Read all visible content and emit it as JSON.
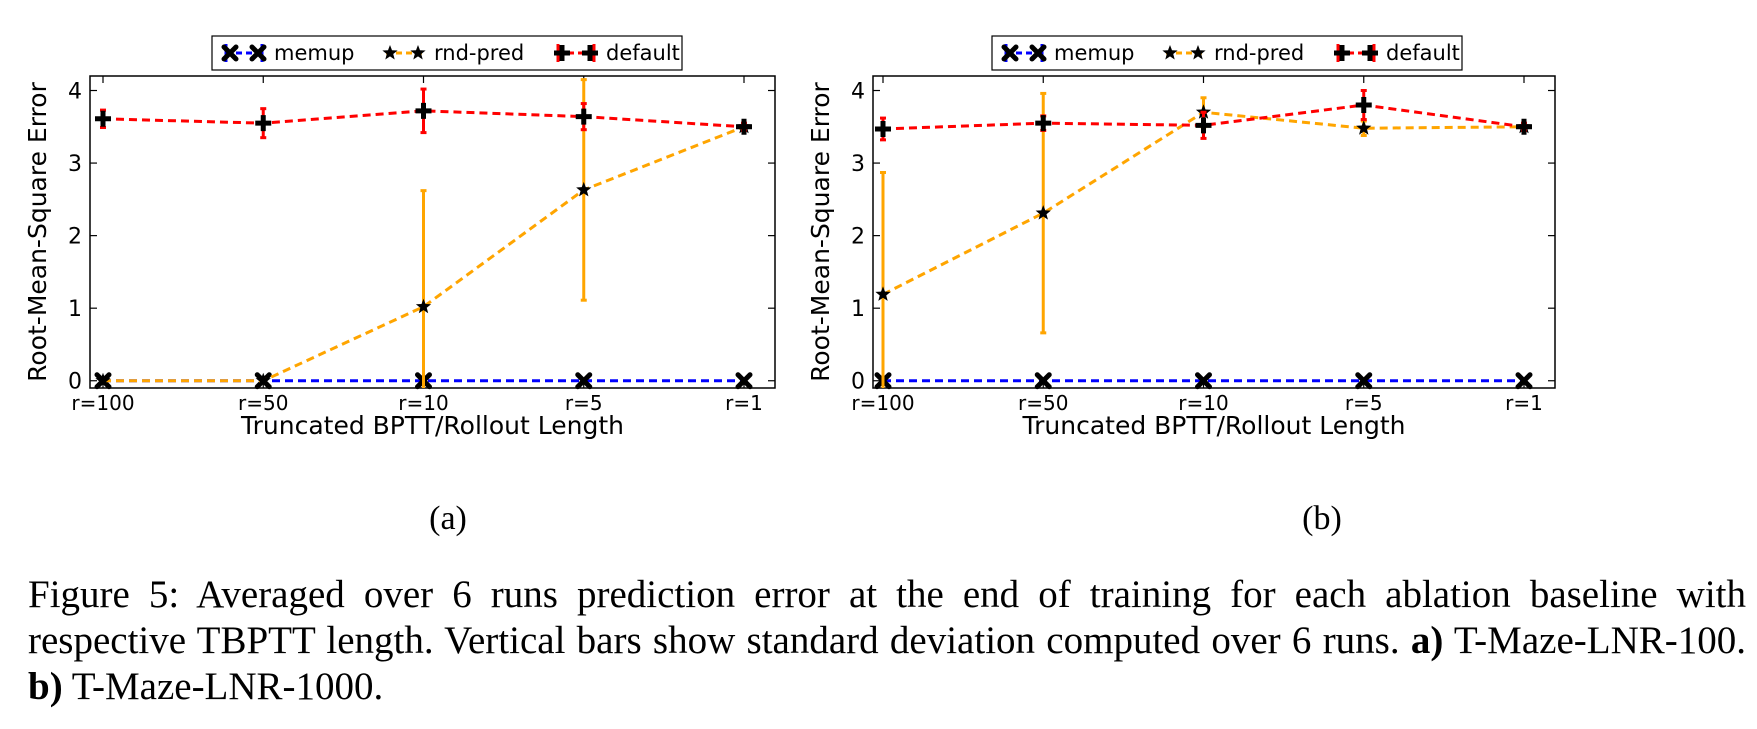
{
  "chart_data": [
    {
      "type": "line",
      "title": "(none,)",
      "xlabel": "Truncated BPTT/Rollout Length",
      "ylabel": "Root-Mean-Square Error",
      "categories": [
        "r=100",
        "r=50",
        "r=10",
        "r=5",
        "r=1"
      ],
      "yticks": [
        "0",
        "1",
        "2",
        "3",
        "4"
      ],
      "ylim": [
        -0.1,
        4.2
      ],
      "legend": "top-center",
      "series": [
        {
          "name": "memup",
          "color": "#0000ff",
          "marker": "x",
          "values": [
            0,
            0,
            0,
            0,
            0
          ],
          "err": [
            0,
            0,
            0,
            0,
            0
          ]
        },
        {
          "name": "rnd-pred",
          "color": "#ffa500",
          "marker": "star",
          "values": [
            0,
            0,
            1.02,
            2.63,
            3.5
          ],
          "err": [
            0,
            0,
            1.6,
            1.52,
            0
          ]
        },
        {
          "name": "default",
          "color": "#ff0000",
          "marker": "plus",
          "values": [
            3.61,
            3.55,
            3.72,
            3.64,
            3.5
          ],
          "err": [
            0.12,
            0.2,
            0.3,
            0.18,
            0.05
          ]
        }
      ],
      "subcaption": "(a)"
    },
    {
      "type": "line",
      "title": "(none,)",
      "xlabel": "Truncated BPTT/Rollout Length",
      "ylabel": "Root-Mean-Square Error",
      "categories": [
        "r=100",
        "r=50",
        "r=10",
        "r=5",
        "r=1"
      ],
      "yticks": [
        "0",
        "1",
        "2",
        "3",
        "4"
      ],
      "ylim": [
        -0.1,
        4.2
      ],
      "legend": "top-center",
      "series": [
        {
          "name": "memup",
          "color": "#0000ff",
          "marker": "x",
          "values": [
            0,
            0,
            0,
            0,
            0
          ],
          "err": [
            0,
            0,
            0,
            0,
            0
          ]
        },
        {
          "name": "rnd-pred",
          "color": "#ffa500",
          "marker": "star",
          "values": [
            1.19,
            2.31,
            3.7,
            3.48,
            3.5
          ],
          "err": [
            1.68,
            1.65,
            0.2,
            0.1,
            0
          ]
        },
        {
          "name": "default",
          "color": "#ff0000",
          "marker": "plus",
          "values": [
            3.47,
            3.55,
            3.52,
            3.8,
            3.5
          ],
          "err": [
            0.15,
            0.1,
            0.18,
            0.2,
            0.05
          ]
        }
      ],
      "subcaption": "(b)"
    }
  ],
  "caption": {
    "prefix": "Figure 5: Averaged over 6 runs prediction error at the end of training for each ablation baseline with respective TBPTT length. Vertical bars show standard deviation computed over 6 runs. ",
    "a_label": "a)",
    "a_text": " T-Maze-LNR-100. ",
    "b_label": "b)",
    "b_text": " T-Maze-LNR-1000."
  }
}
